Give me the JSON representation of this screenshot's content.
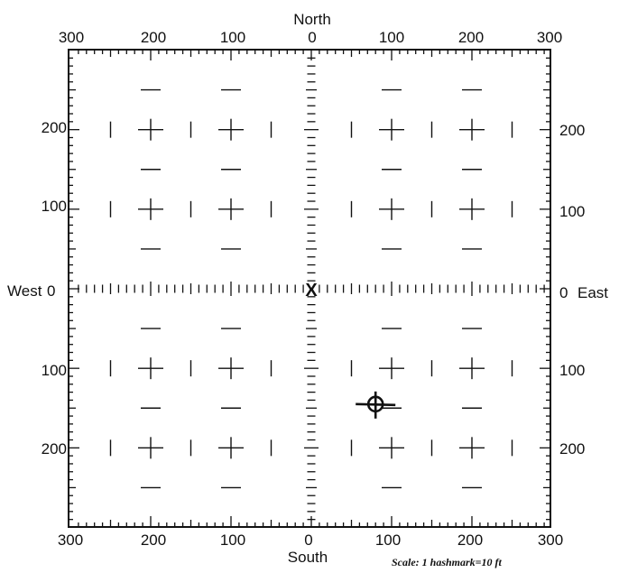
{
  "directions": {
    "north": "North",
    "south": "South",
    "west": "West",
    "east": "East"
  },
  "top_labels": [
    "300",
    "200",
    "100",
    "0",
    "100",
    "200",
    "300"
  ],
  "bottom_labels": [
    "300",
    "200",
    "100",
    "0",
    "100",
    "200",
    "300"
  ],
  "left_labels": [
    "200",
    "100",
    "0",
    "100",
    "200"
  ],
  "right_labels": [
    "200",
    "100",
    "0",
    "100",
    "200"
  ],
  "scale_note": "Scale: 1 hashmark=10 ft",
  "markers": {
    "origin_symbol": "X",
    "target": {
      "east_ft": 80,
      "south_ft": 145
    }
  },
  "grid": {
    "range_ft": 300,
    "minor_tick_ft": 10,
    "cross_spacing_ft": 100
  },
  "colors": {
    "ink": "#111111",
    "background": "#ffffff"
  }
}
